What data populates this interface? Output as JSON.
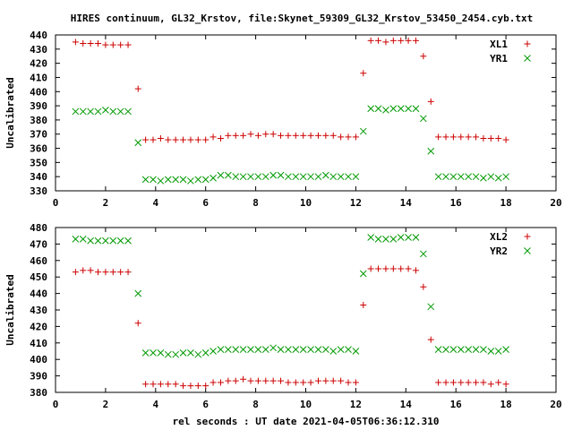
{
  "title": "HIRES continuum, GL32_Krstov, file:Skynet_59309_GL32_Krstov_53450_2454.cyb.txt",
  "chart_data": [
    {
      "type": "scatter",
      "xlabel": "",
      "ylabel": "Uncalibrated",
      "xlim": [
        0,
        20
      ],
      "ylim": [
        330,
        440
      ],
      "xticks": [
        0,
        2,
        4,
        6,
        8,
        10,
        12,
        14,
        16,
        18,
        20
      ],
      "yticks": [
        330,
        340,
        350,
        360,
        370,
        380,
        390,
        400,
        410,
        420,
        430,
        440
      ],
      "grid": false,
      "legend": "top-right",
      "series": [
        {
          "name": "XL1",
          "marker": "plus",
          "color": "#cc0000",
          "points": [
            [
              0.8,
              435
            ],
            [
              1.1,
              434
            ],
            [
              1.4,
              434
            ],
            [
              1.7,
              434
            ],
            [
              2.0,
              433
            ],
            [
              2.3,
              433
            ],
            [
              2.6,
              433
            ],
            [
              2.9,
              433
            ],
            [
              3.3,
              402
            ],
            [
              3.6,
              366
            ],
            [
              3.9,
              366
            ],
            [
              4.2,
              367
            ],
            [
              4.5,
              366
            ],
            [
              4.8,
              366
            ],
            [
              5.1,
              366
            ],
            [
              5.4,
              366
            ],
            [
              5.7,
              366
            ],
            [
              6.0,
              366
            ],
            [
              6.3,
              368
            ],
            [
              6.6,
              367
            ],
            [
              6.9,
              369
            ],
            [
              7.2,
              369
            ],
            [
              7.5,
              369
            ],
            [
              7.8,
              370
            ],
            [
              8.1,
              369
            ],
            [
              8.4,
              370
            ],
            [
              8.7,
              370
            ],
            [
              9.0,
              369
            ],
            [
              9.3,
              369
            ],
            [
              9.6,
              369
            ],
            [
              9.9,
              369
            ],
            [
              10.2,
              369
            ],
            [
              10.5,
              369
            ],
            [
              10.8,
              369
            ],
            [
              11.1,
              369
            ],
            [
              11.4,
              368
            ],
            [
              11.7,
              368
            ],
            [
              12.0,
              368
            ],
            [
              12.3,
              413
            ],
            [
              12.6,
              436
            ],
            [
              12.9,
              436
            ],
            [
              13.2,
              435
            ],
            [
              13.5,
              436
            ],
            [
              13.8,
              436
            ],
            [
              14.1,
              436
            ],
            [
              14.4,
              436
            ],
            [
              14.7,
              425
            ],
            [
              15.0,
              393
            ],
            [
              15.3,
              368
            ],
            [
              15.6,
              368
            ],
            [
              15.9,
              368
            ],
            [
              16.2,
              368
            ],
            [
              16.5,
              368
            ],
            [
              16.8,
              368
            ],
            [
              17.1,
              367
            ],
            [
              17.4,
              367
            ],
            [
              17.7,
              367
            ],
            [
              18.0,
              366
            ]
          ]
        },
        {
          "name": "YR1",
          "marker": "cross",
          "color": "#009900",
          "points": [
            [
              0.8,
              386
            ],
            [
              1.1,
              386
            ],
            [
              1.4,
              386
            ],
            [
              1.7,
              386
            ],
            [
              2.0,
              387
            ],
            [
              2.3,
              386
            ],
            [
              2.6,
              386
            ],
            [
              2.9,
              386
            ],
            [
              3.3,
              364
            ],
            [
              3.6,
              338
            ],
            [
              3.9,
              338
            ],
            [
              4.2,
              337
            ],
            [
              4.5,
              338
            ],
            [
              4.8,
              338
            ],
            [
              5.1,
              338
            ],
            [
              5.4,
              337
            ],
            [
              5.7,
              338
            ],
            [
              6.0,
              338
            ],
            [
              6.3,
              339
            ],
            [
              6.6,
              341
            ],
            [
              6.9,
              341
            ],
            [
              7.2,
              340
            ],
            [
              7.5,
              340
            ],
            [
              7.8,
              340
            ],
            [
              8.1,
              340
            ],
            [
              8.4,
              340
            ],
            [
              8.7,
              341
            ],
            [
              9.0,
              341
            ],
            [
              9.3,
              340
            ],
            [
              9.6,
              340
            ],
            [
              9.9,
              340
            ],
            [
              10.2,
              340
            ],
            [
              10.5,
              340
            ],
            [
              10.8,
              341
            ],
            [
              11.1,
              340
            ],
            [
              11.4,
              340
            ],
            [
              11.7,
              340
            ],
            [
              12.0,
              340
            ],
            [
              12.3,
              372
            ],
            [
              12.6,
              388
            ],
            [
              12.9,
              388
            ],
            [
              13.2,
              387
            ],
            [
              13.5,
              388
            ],
            [
              13.8,
              388
            ],
            [
              14.1,
              388
            ],
            [
              14.4,
              388
            ],
            [
              14.7,
              381
            ],
            [
              15.0,
              358
            ],
            [
              15.3,
              340
            ],
            [
              15.6,
              340
            ],
            [
              15.9,
              340
            ],
            [
              16.2,
              340
            ],
            [
              16.5,
              340
            ],
            [
              16.8,
              340
            ],
            [
              17.1,
              339
            ],
            [
              17.4,
              340
            ],
            [
              17.7,
              339
            ],
            [
              18.0,
              340
            ]
          ]
        }
      ]
    },
    {
      "type": "scatter",
      "xlabel": "rel seconds : UT date 2021-04-05T06:36:12.310",
      "ylabel": "Uncalibrated",
      "xlim": [
        0,
        20
      ],
      "ylim": [
        380,
        480
      ],
      "xticks": [
        0,
        2,
        4,
        6,
        8,
        10,
        12,
        14,
        16,
        18,
        20
      ],
      "yticks": [
        380,
        390,
        400,
        410,
        420,
        430,
        440,
        450,
        460,
        470,
        480
      ],
      "grid": false,
      "legend": "top-right",
      "series": [
        {
          "name": "XL2",
          "marker": "plus",
          "color": "#cc0000",
          "points": [
            [
              0.8,
              453
            ],
            [
              1.1,
              454
            ],
            [
              1.4,
              454
            ],
            [
              1.7,
              453
            ],
            [
              2.0,
              453
            ],
            [
              2.3,
              453
            ],
            [
              2.6,
              453
            ],
            [
              2.9,
              453
            ],
            [
              3.3,
              422
            ],
            [
              3.6,
              385
            ],
            [
              3.9,
              385
            ],
            [
              4.2,
              385
            ],
            [
              4.5,
              385
            ],
            [
              4.8,
              385
            ],
            [
              5.1,
              384
            ],
            [
              5.4,
              384
            ],
            [
              5.7,
              384
            ],
            [
              6.0,
              384
            ],
            [
              6.3,
              386
            ],
            [
              6.6,
              386
            ],
            [
              6.9,
              387
            ],
            [
              7.2,
              387
            ],
            [
              7.5,
              388
            ],
            [
              7.8,
              387
            ],
            [
              8.1,
              387
            ],
            [
              8.4,
              387
            ],
            [
              8.7,
              387
            ],
            [
              9.0,
              387
            ],
            [
              9.3,
              386
            ],
            [
              9.6,
              386
            ],
            [
              9.9,
              386
            ],
            [
              10.2,
              386
            ],
            [
              10.5,
              387
            ],
            [
              10.8,
              387
            ],
            [
              11.1,
              387
            ],
            [
              11.4,
              387
            ],
            [
              11.7,
              386
            ],
            [
              12.0,
              386
            ],
            [
              12.3,
              433
            ],
            [
              12.6,
              455
            ],
            [
              12.9,
              455
            ],
            [
              13.2,
              455
            ],
            [
              13.5,
              455
            ],
            [
              13.8,
              455
            ],
            [
              14.1,
              455
            ],
            [
              14.4,
              454
            ],
            [
              14.7,
              444
            ],
            [
              15.0,
              412
            ],
            [
              15.3,
              386
            ],
            [
              15.6,
              386
            ],
            [
              15.9,
              386
            ],
            [
              16.2,
              386
            ],
            [
              16.5,
              386
            ],
            [
              16.8,
              386
            ],
            [
              17.1,
              386
            ],
            [
              17.4,
              385
            ],
            [
              17.7,
              386
            ],
            [
              18.0,
              385
            ]
          ]
        },
        {
          "name": "YR2",
          "marker": "cross",
          "color": "#009900",
          "points": [
            [
              0.8,
              473
            ],
            [
              1.1,
              473
            ],
            [
              1.4,
              472
            ],
            [
              1.7,
              472
            ],
            [
              2.0,
              472
            ],
            [
              2.3,
              472
            ],
            [
              2.6,
              472
            ],
            [
              2.9,
              472
            ],
            [
              3.3,
              440
            ],
            [
              3.6,
              404
            ],
            [
              3.9,
              404
            ],
            [
              4.2,
              404
            ],
            [
              4.5,
              403
            ],
            [
              4.8,
              403
            ],
            [
              5.1,
              404
            ],
            [
              5.4,
              404
            ],
            [
              5.7,
              403
            ],
            [
              6.0,
              404
            ],
            [
              6.3,
              405
            ],
            [
              6.6,
              406
            ],
            [
              6.9,
              406
            ],
            [
              7.2,
              406
            ],
            [
              7.5,
              406
            ],
            [
              7.8,
              406
            ],
            [
              8.1,
              406
            ],
            [
              8.4,
              406
            ],
            [
              8.7,
              407
            ],
            [
              9.0,
              406
            ],
            [
              9.3,
              406
            ],
            [
              9.6,
              406
            ],
            [
              9.9,
              406
            ],
            [
              10.2,
              406
            ],
            [
              10.5,
              406
            ],
            [
              10.8,
              406
            ],
            [
              11.1,
              405
            ],
            [
              11.4,
              406
            ],
            [
              11.7,
              406
            ],
            [
              12.0,
              405
            ],
            [
              12.3,
              452
            ],
            [
              12.6,
              474
            ],
            [
              12.9,
              473
            ],
            [
              13.2,
              473
            ],
            [
              13.5,
              473
            ],
            [
              13.8,
              474
            ],
            [
              14.1,
              474
            ],
            [
              14.4,
              474
            ],
            [
              14.7,
              464
            ],
            [
              15.0,
              432
            ],
            [
              15.3,
              406
            ],
            [
              15.6,
              406
            ],
            [
              15.9,
              406
            ],
            [
              16.2,
              406
            ],
            [
              16.5,
              406
            ],
            [
              16.8,
              406
            ],
            [
              17.1,
              406
            ],
            [
              17.4,
              405
            ],
            [
              17.7,
              405
            ],
            [
              18.0,
              406
            ]
          ]
        }
      ]
    }
  ]
}
